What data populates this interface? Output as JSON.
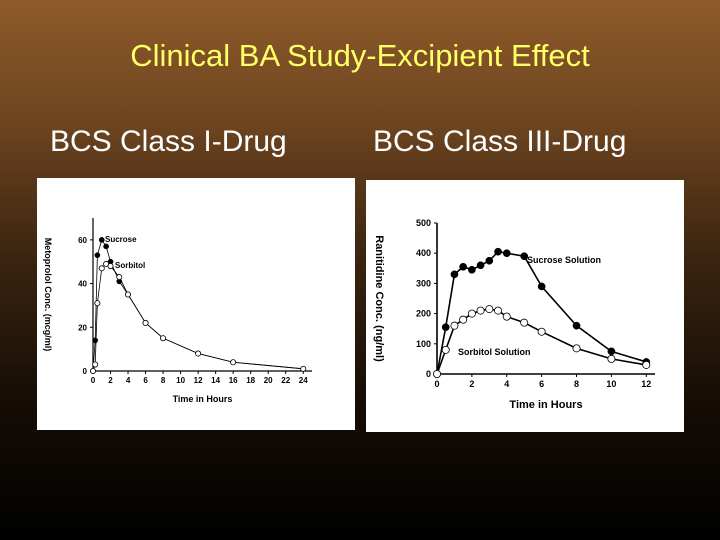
{
  "slide": {
    "title": "Clinical BA Study-Excipient Effect",
    "left_heading": "BCS Class I-Drug",
    "right_heading": "BCS Class III-Drug"
  },
  "colors": {
    "title": "#ffff66",
    "heading": "#ffffff",
    "filled_marker": "#000000",
    "open_marker": "#ffffff"
  },
  "chart_data": [
    {
      "type": "line",
      "xlabel": "Time in Hours",
      "ylabel": "Metoprolol Conc. (mcg/ml)",
      "xlim": [
        0,
        25
      ],
      "ylim": [
        0,
        70
      ],
      "xticks": [
        0,
        2,
        4,
        6,
        8,
        10,
        12,
        14,
        16,
        18,
        20,
        22,
        24
      ],
      "yticks": [
        0,
        20,
        40,
        60
      ],
      "grid": false,
      "legend": "inline labels near curves",
      "series": [
        {
          "name": "Sucrose",
          "marker": "filled",
          "x": [
            0,
            0.25,
            0.5,
            1,
            1.5,
            2,
            3,
            4,
            6,
            8,
            12,
            16,
            24
          ],
          "y": [
            0,
            14,
            53,
            60,
            57,
            50,
            41,
            35,
            22,
            15,
            8,
            4,
            1
          ]
        },
        {
          "name": "Sorbitol",
          "marker": "open",
          "x": [
            0,
            0.25,
            0.5,
            1,
            1.5,
            2,
            3,
            4,
            6,
            8,
            12,
            16,
            24
          ],
          "y": [
            0,
            3,
            31,
            47,
            49,
            48,
            43,
            35,
            22,
            15,
            8,
            4,
            1
          ]
        }
      ]
    },
    {
      "type": "line",
      "xlabel": "Time in Hours",
      "ylabel": "Ranitidine Conc. (ng/ml)",
      "xlim": [
        0,
        12.5
      ],
      "ylim": [
        0,
        500
      ],
      "xticks": [
        0,
        2,
        4,
        6,
        8,
        10,
        12
      ],
      "yticks": [
        0,
        100,
        200,
        300,
        400,
        500
      ],
      "grid": false,
      "legend": "inline labels near curves",
      "series": [
        {
          "name": "Sucrose Solution",
          "marker": "filled",
          "x": [
            0,
            0.5,
            1,
            1.5,
            2,
            2.5,
            3,
            3.5,
            4,
            5,
            6,
            8,
            10,
            12
          ],
          "y": [
            0,
            155,
            330,
            355,
            345,
            360,
            375,
            405,
            400,
            390,
            290,
            160,
            75,
            40
          ]
        },
        {
          "name": "Sorbitol Solution",
          "marker": "open",
          "x": [
            0,
            0.5,
            1,
            1.5,
            2,
            2.5,
            3,
            3.5,
            4,
            5,
            6,
            8,
            10,
            12
          ],
          "y": [
            0,
            80,
            160,
            180,
            200,
            210,
            215,
            210,
            190,
            170,
            140,
            85,
            50,
            30
          ]
        }
      ]
    }
  ]
}
